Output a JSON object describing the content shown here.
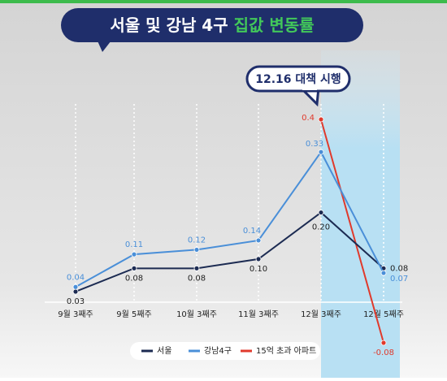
{
  "chart_data": {
    "type": "line",
    "title": "서울 및 강남 4구",
    "title_highlight": "집값 변동률",
    "annotation": "12.16 대책 시행",
    "categories": [
      "9월 3째주",
      "9월 5째주",
      "10월 3째주",
      "11월 3째주",
      "12월 3째주",
      "12월 5째주"
    ],
    "series": [
      {
        "name": "서울",
        "color": "#1c2b52",
        "values": [
          0.03,
          0.08,
          0.08,
          0.1,
          0.2,
          0.08
        ],
        "value_labels": [
          "0.03",
          "0.08",
          "0.08",
          "0.10",
          "0.20",
          "0.08"
        ]
      },
      {
        "name": "강남4구",
        "color": "#4a8fd8",
        "values": [
          0.04,
          0.11,
          0.12,
          0.14,
          0.33,
          0.07
        ],
        "value_labels": [
          "0.04",
          "0.11",
          "0.12",
          "0.14",
          "0.33",
          "0.07"
        ]
      },
      {
        "name": "15억 초과 아파트",
        "color": "#e03a2c",
        "values": [
          null,
          null,
          null,
          null,
          0.4,
          -0.08
        ],
        "value_labels": [
          null,
          null,
          null,
          null,
          "0.4",
          "-0.08"
        ]
      }
    ]
  }
}
